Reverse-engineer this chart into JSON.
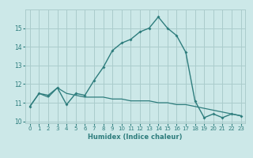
{
  "title": "",
  "xlabel": "Humidex (Indice chaleur)",
  "ylabel": "",
  "background_color": "#cce8e8",
  "line_color": "#2e7d7d",
  "grid_color": "#aacccc",
  "xlim": [
    -0.5,
    23.5
  ],
  "ylim": [
    9.9,
    16.0
  ],
  "xticks": [
    0,
    1,
    2,
    3,
    4,
    5,
    6,
    7,
    8,
    9,
    10,
    11,
    12,
    13,
    14,
    15,
    16,
    17,
    18,
    19,
    20,
    21,
    22,
    23
  ],
  "yticks": [
    10,
    11,
    12,
    13,
    14,
    15
  ],
  "series1_x": [
    0,
    1,
    2,
    3,
    4,
    5,
    6,
    7,
    8,
    9,
    10,
    11,
    12,
    13,
    14,
    15,
    16,
    17,
    18,
    19,
    20,
    21,
    22,
    23
  ],
  "series1_y": [
    10.8,
    11.5,
    11.4,
    11.8,
    10.9,
    11.5,
    11.4,
    12.2,
    12.9,
    13.8,
    14.2,
    14.4,
    14.8,
    15.0,
    15.6,
    15.0,
    14.6,
    13.7,
    11.1,
    10.2,
    10.4,
    10.2,
    10.4,
    10.3
  ],
  "series2_x": [
    0,
    1,
    2,
    3,
    4,
    5,
    6,
    7,
    8,
    9,
    10,
    11,
    12,
    13,
    14,
    15,
    16,
    17,
    18,
    19,
    20,
    21,
    22,
    23
  ],
  "series2_y": [
    10.8,
    11.5,
    11.3,
    11.8,
    11.5,
    11.4,
    11.3,
    11.3,
    11.3,
    11.2,
    11.2,
    11.1,
    11.1,
    11.1,
    11.0,
    11.0,
    10.9,
    10.9,
    10.8,
    10.7,
    10.6,
    10.5,
    10.4,
    10.3
  ]
}
